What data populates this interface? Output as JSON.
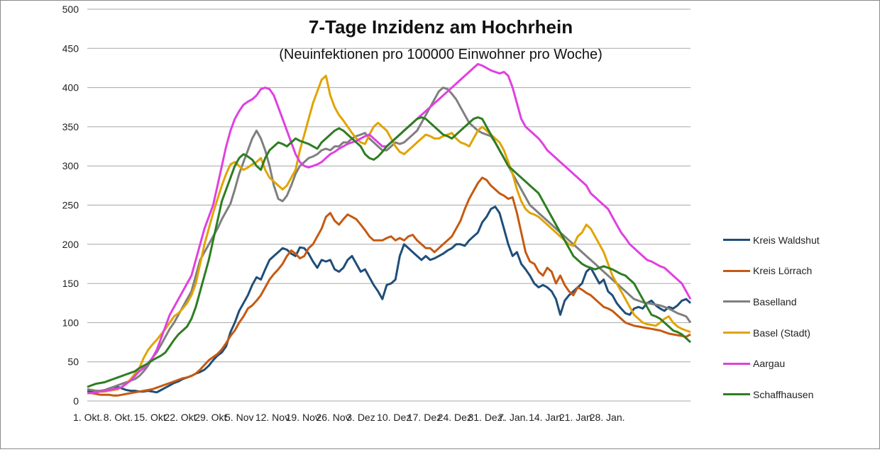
{
  "chart_data": {
    "type": "line",
    "title": "7-Tage Inzidenz am Hochrhein",
    "subtitle": "(Neuinfektionen pro 100000 Einwohner pro Woche)",
    "ylim": [
      0,
      500
    ],
    "yticks": [
      0,
      50,
      100,
      150,
      200,
      250,
      300,
      350,
      400,
      450,
      500
    ],
    "xticks": [
      "1. Okt.",
      "8. Okt.",
      "15. Okt",
      "22. Okt",
      "29. Okt",
      "5. Nov",
      "12. Nov",
      "19. Nov",
      "26. Nov",
      "3. Dez",
      "10. Dez",
      "17. Dez",
      "24. Dez",
      "31. Dez.",
      "7. Jan.",
      "14. Jan",
      "21. Jan",
      "28. Jan."
    ],
    "x_start": "1. Okt.",
    "x_step_days": 1,
    "grid": true,
    "legend_position": "right",
    "series": [
      {
        "name": "Kreis Waldshut",
        "color": "#1f4e79",
        "values": [
          12,
          12,
          13,
          12,
          13,
          14,
          15,
          18,
          16,
          14,
          13,
          13,
          12,
          12,
          13,
          12,
          11,
          14,
          17,
          20,
          23,
          25,
          28,
          30,
          32,
          35,
          37,
          40,
          45,
          52,
          58,
          62,
          70,
          88,
          100,
          115,
          125,
          135,
          148,
          158,
          155,
          168,
          180,
          185,
          190,
          195,
          193,
          188,
          185,
          196,
          195,
          188,
          178,
          170,
          180,
          178,
          180,
          168,
          165,
          170,
          180,
          185,
          175,
          165,
          168,
          158,
          148,
          140,
          130,
          148,
          150,
          155,
          185,
          200,
          195,
          190,
          185,
          180,
          185,
          180,
          182,
          185,
          188,
          192,
          195,
          200,
          200,
          198,
          205,
          210,
          215,
          228,
          235,
          245,
          248,
          240,
          220,
          200,
          185,
          190,
          175,
          168,
          160,
          150,
          145,
          148,
          145,
          140,
          130,
          110,
          128,
          135,
          140,
          145,
          150,
          165,
          170,
          160,
          150,
          155,
          140,
          135,
          125,
          118,
          112,
          110,
          118,
          120,
          118,
          125,
          128,
          122,
          118,
          115,
          120,
          118,
          122,
          128,
          130,
          125
        ]
      },
      {
        "name": "Kreis Lörrach",
        "color": "#c65911",
        "values": [
          10,
          10,
          9,
          8,
          8,
          8,
          7,
          7,
          8,
          9,
          10,
          11,
          12,
          13,
          14,
          15,
          17,
          19,
          21,
          23,
          25,
          27,
          29,
          30,
          32,
          35,
          40,
          46,
          52,
          56,
          60,
          66,
          74,
          83,
          90,
          100,
          108,
          118,
          122,
          128,
          135,
          145,
          155,
          162,
          168,
          175,
          185,
          192,
          188,
          182,
          185,
          195,
          200,
          210,
          220,
          235,
          240,
          230,
          225,
          232,
          238,
          235,
          232,
          225,
          218,
          210,
          205,
          205,
          205,
          208,
          210,
          205,
          208,
          205,
          210,
          212,
          205,
          200,
          195,
          195,
          190,
          195,
          200,
          205,
          210,
          220,
          230,
          245,
          258,
          268,
          278,
          285,
          282,
          275,
          270,
          265,
          262,
          258,
          260,
          240,
          215,
          190,
          178,
          175,
          165,
          160,
          170,
          165,
          150,
          160,
          148,
          140,
          135,
          145,
          142,
          138,
          135,
          130,
          125,
          120,
          118,
          115,
          110,
          105,
          100,
          98,
          96,
          95,
          94,
          93,
          92,
          91,
          90,
          88,
          86,
          85,
          84,
          83,
          82,
          85
        ]
      },
      {
        "name": "Baselland",
        "color": "#7f7f7f",
        "values": [
          15,
          14,
          13,
          13,
          14,
          16,
          18,
          20,
          22,
          24,
          26,
          28,
          32,
          38,
          45,
          55,
          62,
          72,
          82,
          92,
          100,
          110,
          120,
          130,
          140,
          160,
          180,
          190,
          200,
          210,
          220,
          232,
          242,
          252,
          270,
          290,
          305,
          320,
          335,
          345,
          335,
          320,
          300,
          275,
          258,
          255,
          262,
          275,
          290,
          300,
          305,
          310,
          312,
          315,
          320,
          322,
          320,
          325,
          325,
          330,
          330,
          335,
          338,
          340,
          342,
          335,
          330,
          325,
          320,
          320,
          325,
          330,
          328,
          330,
          335,
          340,
          345,
          355,
          365,
          375,
          385,
          395,
          400,
          398,
          392,
          385,
          375,
          365,
          355,
          350,
          345,
          342,
          340,
          338,
          330,
          320,
          310,
          300,
          290,
          280,
          270,
          260,
          250,
          245,
          240,
          235,
          230,
          225,
          220,
          215,
          210,
          205,
          200,
          195,
          190,
          185,
          180,
          175,
          170,
          165,
          160,
          155,
          150,
          145,
          140,
          135,
          130,
          128,
          126,
          125,
          124,
          123,
          122,
          120,
          118,
          115,
          112,
          110,
          108,
          100
        ]
      },
      {
        "name": "Basel (Stadt)",
        "color": "#e0a400",
        "values": [
          10,
          10,
          11,
          12,
          12,
          13,
          14,
          15,
          18,
          22,
          28,
          35,
          42,
          55,
          65,
          72,
          78,
          85,
          92,
          100,
          108,
          112,
          118,
          125,
          135,
          150,
          175,
          200,
          220,
          240,
          258,
          275,
          290,
          302,
          305,
          300,
          295,
          298,
          302,
          305,
          310,
          295,
          285,
          280,
          275,
          270,
          275,
          285,
          295,
          320,
          340,
          360,
          380,
          395,
          410,
          415,
          390,
          375,
          365,
          358,
          350,
          342,
          335,
          330,
          328,
          340,
          350,
          355,
          350,
          345,
          335,
          325,
          318,
          315,
          320,
          325,
          330,
          335,
          340,
          338,
          335,
          335,
          338,
          340,
          342,
          335,
          330,
          328,
          325,
          335,
          345,
          350,
          345,
          340,
          335,
          330,
          320,
          305,
          290,
          270,
          255,
          245,
          240,
          238,
          235,
          230,
          225,
          220,
          215,
          210,
          205,
          200,
          198,
          210,
          215,
          225,
          220,
          210,
          200,
          190,
          175,
          160,
          150,
          140,
          130,
          120,
          110,
          105,
          100,
          98,
          97,
          96,
          100,
          105,
          108,
          100,
          95,
          92,
          90,
          88
        ]
      },
      {
        "name": "Aargau",
        "color": "#e040e0",
        "values": [
          10,
          10,
          11,
          12,
          13,
          14,
          15,
          16,
          18,
          22,
          26,
          32,
          38,
          42,
          48,
          55,
          65,
          80,
          95,
          110,
          120,
          130,
          140,
          150,
          160,
          180,
          200,
          220,
          235,
          250,
          275,
          300,
          325,
          345,
          360,
          370,
          378,
          382,
          385,
          390,
          398,
          400,
          398,
          390,
          375,
          360,
          345,
          330,
          315,
          305,
          300,
          298,
          300,
          302,
          305,
          310,
          315,
          318,
          322,
          325,
          328,
          330,
          332,
          335,
          338,
          340,
          335,
          330,
          325,
          325,
          330,
          335,
          340,
          345,
          350,
          355,
          360,
          365,
          370,
          375,
          380,
          385,
          390,
          395,
          400,
          405,
          410,
          415,
          420,
          425,
          430,
          428,
          425,
          422,
          420,
          418,
          420,
          415,
          400,
          380,
          360,
          350,
          345,
          340,
          335,
          328,
          320,
          315,
          310,
          305,
          300,
          295,
          290,
          285,
          280,
          275,
          265,
          260,
          255,
          250,
          245,
          235,
          225,
          215,
          208,
          200,
          195,
          190,
          185,
          180,
          178,
          175,
          172,
          170,
          165,
          160,
          155,
          150,
          140,
          130
        ]
      },
      {
        "name": "Schaffhausen",
        "color": "#2e7d22",
        "values": [
          18,
          20,
          22,
          23,
          24,
          26,
          28,
          30,
          32,
          34,
          36,
          38,
          42,
          45,
          48,
          52,
          55,
          58,
          62,
          70,
          78,
          85,
          90,
          95,
          105,
          120,
          140,
          160,
          180,
          205,
          230,
          255,
          270,
          285,
          300,
          310,
          315,
          312,
          308,
          300,
          295,
          310,
          320,
          325,
          330,
          328,
          325,
          330,
          335,
          332,
          330,
          328,
          325,
          322,
          330,
          335,
          340,
          345,
          348,
          345,
          340,
          335,
          330,
          325,
          315,
          310,
          308,
          312,
          318,
          325,
          330,
          335,
          340,
          345,
          350,
          355,
          360,
          362,
          360,
          355,
          350,
          345,
          340,
          338,
          335,
          340,
          345,
          350,
          355,
          360,
          362,
          360,
          350,
          340,
          330,
          320,
          310,
          300,
          295,
          290,
          285,
          280,
          275,
          270,
          265,
          255,
          245,
          235,
          225,
          215,
          205,
          195,
          185,
          180,
          175,
          172,
          170,
          168,
          170,
          172,
          170,
          168,
          165,
          162,
          160,
          155,
          150,
          140,
          130,
          120,
          110,
          108,
          105,
          100,
          95,
          90,
          88,
          85,
          80,
          75
        ]
      }
    ]
  }
}
